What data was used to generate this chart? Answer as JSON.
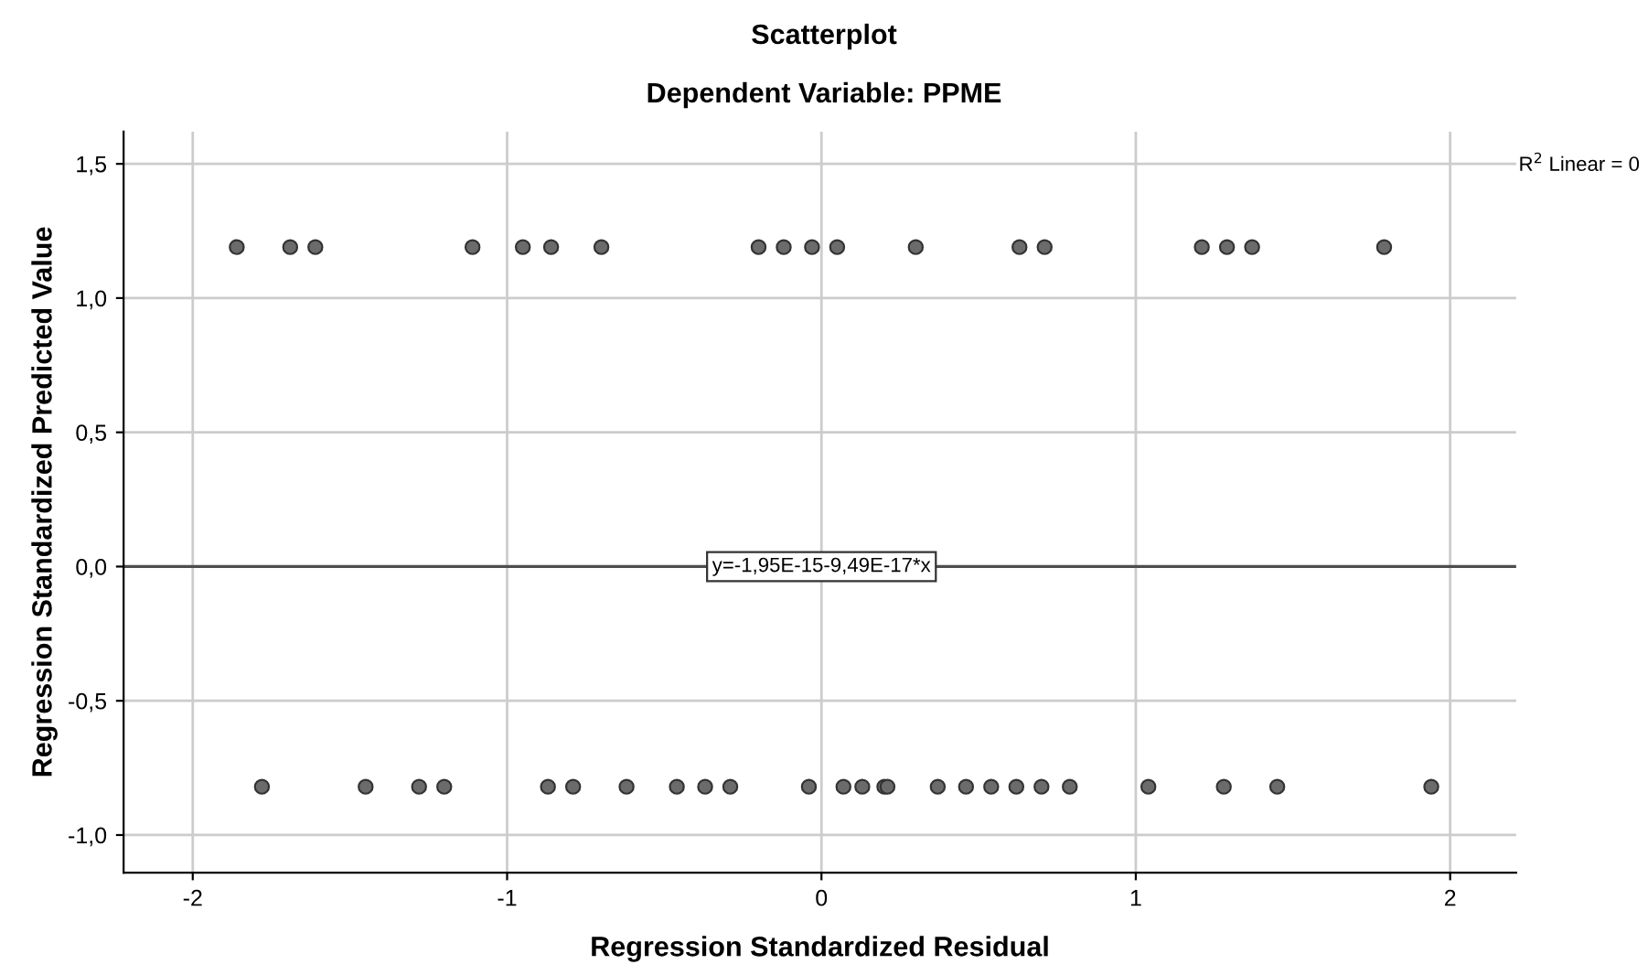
{
  "chart_data": {
    "type": "scatter",
    "title": "Scatterplot",
    "subtitle": "Dependent Variable: PPME",
    "xlabel": "Regression Standardized Residual",
    "ylabel": "Regression Standardized Predicted Value",
    "xlim": [
      -2.22,
      2.21
    ],
    "ylim": [
      -1.14,
      1.62
    ],
    "xticks": [
      {
        "value": -2,
        "label": "-2"
      },
      {
        "value": -1,
        "label": "-1"
      },
      {
        "value": 0,
        "label": "0"
      },
      {
        "value": 1,
        "label": "1"
      },
      {
        "value": 2,
        "label": "2"
      }
    ],
    "yticks": [
      {
        "value": -1.0,
        "label": "-1,0"
      },
      {
        "value": -0.5,
        "label": "-0,5"
      },
      {
        "value": 0.0,
        "label": "0,0"
      },
      {
        "value": 0.5,
        "label": "0,5"
      },
      {
        "value": 1.0,
        "label": "1,0"
      },
      {
        "value": 1.5,
        "label": "1,5"
      }
    ],
    "grid": true,
    "marker": "circle",
    "series": [
      {
        "color": "#6b6b6b",
        "x": [
          -1.86,
          -1.69,
          -1.61,
          -1.11,
          -0.95,
          -0.86,
          -0.7,
          -0.2,
          -0.12,
          -0.03,
          0.05,
          0.3,
          0.63,
          0.71,
          1.21,
          1.29,
          1.37,
          1.79
        ],
        "values": [
          1.19,
          1.19,
          1.19,
          1.19,
          1.19,
          1.19,
          1.19,
          1.19,
          1.19,
          1.19,
          1.19,
          1.19,
          1.19,
          1.19,
          1.19,
          1.19,
          1.19,
          1.19
        ]
      },
      {
        "color": "#6b6b6b",
        "x": [
          -1.78,
          -1.45,
          -1.28,
          -1.2,
          -0.87,
          -0.79,
          -0.62,
          -0.46,
          -0.37,
          -0.29,
          -0.04,
          0.07,
          0.13,
          0.2,
          0.21,
          0.37,
          0.46,
          0.54,
          0.62,
          0.7,
          0.79,
          1.04,
          1.28,
          1.45,
          1.94
        ],
        "values": [
          -0.82,
          -0.82,
          -0.82,
          -0.82,
          -0.82,
          -0.82,
          -0.82,
          -0.82,
          -0.82,
          -0.82,
          -0.82,
          -0.82,
          -0.82,
          -0.82,
          -0.82,
          -0.82,
          -0.82,
          -0.82,
          -0.82,
          -0.82,
          -0.82,
          -0.82,
          -0.82,
          -0.82,
          -0.82
        ]
      },
      {
        "type": "line",
        "marker": "none",
        "color": "#4d4d4d",
        "x": [
          -2.22,
          2.21
        ],
        "values": [
          0,
          0
        ]
      }
    ],
    "annotations": [
      {
        "text": "y=-1,95E-15-9,49E-17*x",
        "x": 0,
        "y": 0
      },
      "R$^{2}$ Linear = 0"
    ]
  }
}
